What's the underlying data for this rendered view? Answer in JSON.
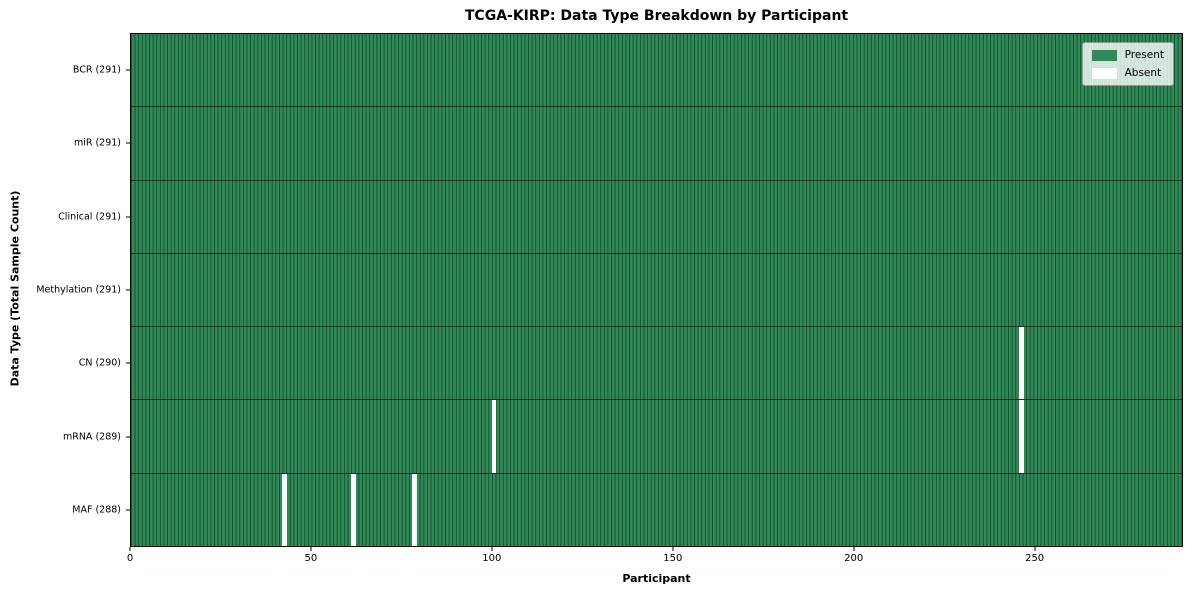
{
  "chart_data": {
    "type": "heatmap",
    "title": "TCGA-KIRP: Data Type Breakdown by Participant",
    "xlabel": "Participant",
    "ylabel": "Data Type (Total Sample Count)",
    "n_participants": 291,
    "xlim": [
      0,
      291
    ],
    "x_ticks": [
      0,
      50,
      100,
      150,
      200,
      250
    ],
    "rows": [
      {
        "label": "BCR (291)",
        "name": "bcr",
        "count": 291,
        "absent": []
      },
      {
        "label": "miR (291)",
        "name": "mir",
        "count": 291,
        "absent": []
      },
      {
        "label": "Clinical (291)",
        "name": "clinical",
        "count": 291,
        "absent": []
      },
      {
        "label": "Methylation (291)",
        "name": "methylation",
        "count": 291,
        "absent": []
      },
      {
        "label": "CN (290)",
        "name": "cn",
        "count": 290,
        "absent": [
          246
        ]
      },
      {
        "label": "mRNA (289)",
        "name": "mrna",
        "count": 289,
        "absent": [
          100,
          246
        ]
      },
      {
        "label": "MAF (288)",
        "name": "maf",
        "count": 288,
        "absent": [
          42,
          61,
          78
        ]
      }
    ],
    "legend": [
      {
        "label": "Present",
        "color": "#2e8b57"
      },
      {
        "label": "Absent",
        "color": "#ffffff"
      }
    ],
    "legend_position": "upper right",
    "colors": {
      "present": "#2e8b57",
      "absent": "#ffffff",
      "cell_edge": "rgba(0,0,0,0.45)",
      "row_divider": "rgba(0,0,0,0.6)"
    },
    "grid": "cell-edges"
  }
}
